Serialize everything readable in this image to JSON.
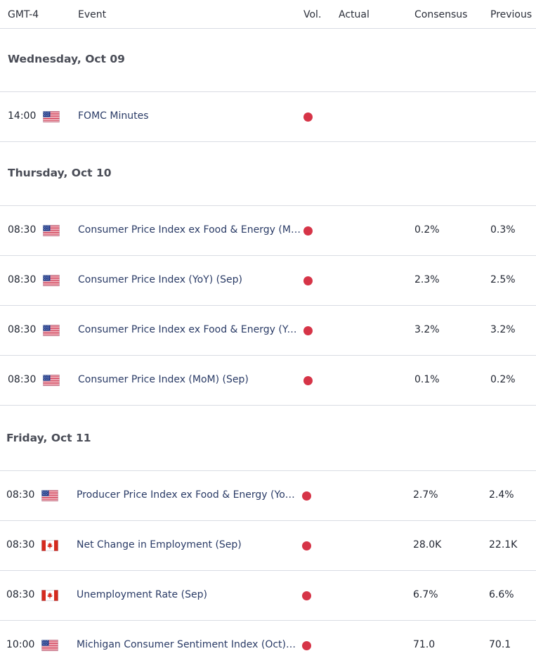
{
  "header": {
    "timezone": "GMT-4",
    "event": "Event",
    "vol": "Vol.",
    "actual": "Actual",
    "consensus": "Consensus",
    "previous": "Previous"
  },
  "colors": {
    "volatility_high": "#d63447",
    "event_text": "#2a3b66",
    "divider": "#d9dce3"
  },
  "days": [
    {
      "title": "Wednesday, Oct 09",
      "events": [
        {
          "time": "14:00",
          "flag": "us-flag-icon",
          "name": "FOMC Minutes",
          "actual": "",
          "consensus": "",
          "previous": ""
        }
      ]
    },
    {
      "title": "Thursday, Oct 10",
      "events": [
        {
          "time": "08:30",
          "flag": "us-flag-icon",
          "name": "Consumer Price Index ex Food & Energy (MoM) (Sep)",
          "actual": "",
          "consensus": "0.2%",
          "previous": "0.3%"
        },
        {
          "time": "08:30",
          "flag": "us-flag-icon",
          "name": "Consumer Price Index (YoY) (Sep)",
          "actual": "",
          "consensus": "2.3%",
          "previous": "2.5%"
        },
        {
          "time": "08:30",
          "flag": "us-flag-icon",
          "name": "Consumer Price Index ex Food & Energy (YoY) (Sep)",
          "actual": "",
          "consensus": "3.2%",
          "previous": "3.2%"
        },
        {
          "time": "08:30",
          "flag": "us-flag-icon",
          "name": "Consumer Price Index (MoM) (Sep)",
          "actual": "",
          "consensus": "0.1%",
          "previous": "0.2%"
        }
      ]
    },
    {
      "title": "Friday, Oct 11",
      "events": [
        {
          "time": "08:30",
          "flag": "us-flag-icon",
          "name": "Producer Price Index ex Food & Energy (YoY) (Sep)",
          "actual": "",
          "consensus": "2.7%",
          "previous": "2.4%"
        },
        {
          "time": "08:30",
          "flag": "canada-flag-icon",
          "name": "Net Change in Employment (Sep)",
          "actual": "",
          "consensus": "28.0K",
          "previous": "22.1K"
        },
        {
          "time": "08:30",
          "flag": "canada-flag-icon",
          "name": "Unemployment Rate (Sep)",
          "actual": "",
          "consensus": "6.7%",
          "previous": "6.6%"
        },
        {
          "time": "10:00",
          "flag": "us-flag-icon",
          "name": "Michigan Consumer Sentiment Index (Oct)Prel",
          "actual": "",
          "consensus": "71.0",
          "previous": "70.1"
        }
      ]
    }
  ]
}
